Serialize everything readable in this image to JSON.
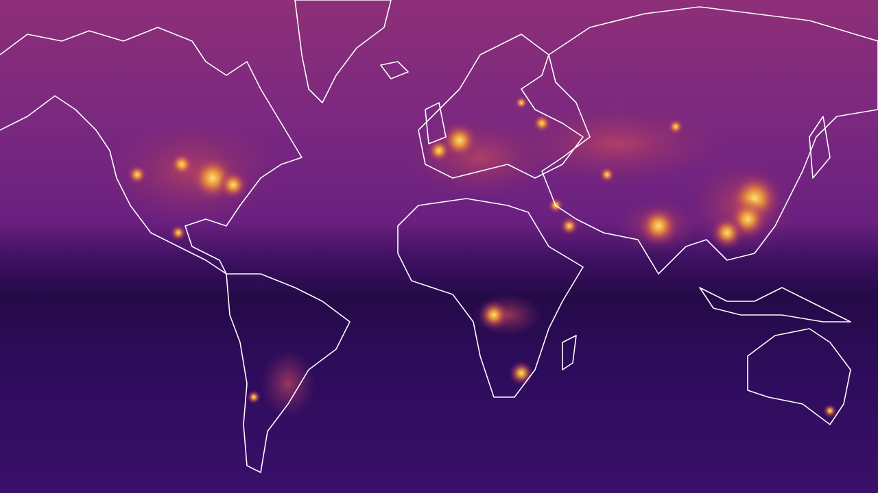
{
  "map": {
    "projection": "mercator",
    "colormap": "inferno",
    "coastline_color": "#ffffff",
    "colors": {
      "north_high_latitude": "#8e2f78",
      "north_mid_latitude": "#6a1f7a",
      "tropics": "#2a0c4e",
      "south": "#37106a",
      "hotspot_core": "#ffe27a",
      "hotspot_mid": "#f6a431",
      "hotspot_edge": "#c24a5c"
    }
  }
}
